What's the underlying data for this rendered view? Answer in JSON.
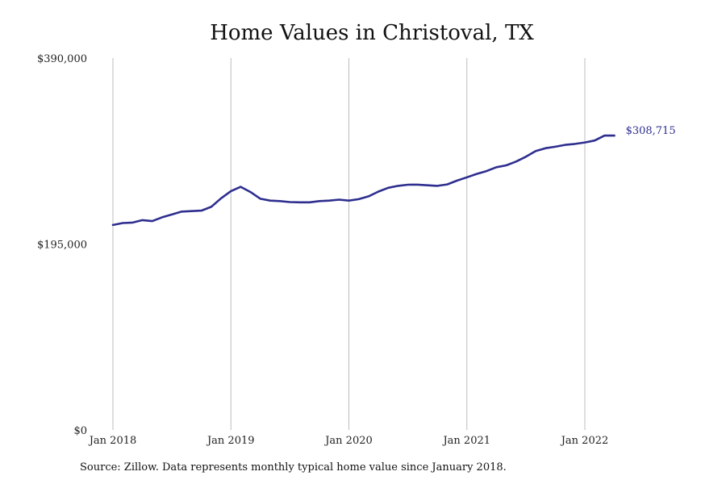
{
  "chart_data": {
    "type": "line",
    "title": "Home Values in Christoval, TX",
    "xlabel": "",
    "ylabel": "",
    "ylim": [
      0,
      390000
    ],
    "xlim": [
      "2017-12",
      "2022-12"
    ],
    "grid": "vertical",
    "y_ticks": [
      {
        "value": 0,
        "label": "$0"
      },
      {
        "value": 195000,
        "label": "$195,000"
      },
      {
        "value": 390000,
        "label": "$390,000"
      }
    ],
    "x_ticks": [
      {
        "value": "2018-01",
        "label": "Jan 2018"
      },
      {
        "value": "2019-01",
        "label": "Jan 2019"
      },
      {
        "value": "2020-01",
        "label": "Jan 2020"
      },
      {
        "value": "2021-01",
        "label": "Jan 2021"
      },
      {
        "value": "2022-01",
        "label": "Jan 2022"
      }
    ],
    "series": [
      {
        "color": "#2e2e8f",
        "x": [
          "2018-01",
          "2018-02",
          "2018-03",
          "2018-04",
          "2018-05",
          "2018-06",
          "2018-07",
          "2018-08",
          "2018-09",
          "2018-10",
          "2018-11",
          "2018-12",
          "2019-01",
          "2019-02",
          "2019-03",
          "2019-04",
          "2019-05",
          "2019-06",
          "2019-07",
          "2019-08",
          "2019-09",
          "2019-10",
          "2019-11",
          "2019-12",
          "2020-01",
          "2020-02",
          "2020-03",
          "2020-04",
          "2020-05",
          "2020-06",
          "2020-07",
          "2020-08",
          "2020-09",
          "2020-10",
          "2020-11",
          "2020-12",
          "2021-01",
          "2021-02",
          "2021-03",
          "2021-04",
          "2021-05",
          "2021-06",
          "2021-07",
          "2021-08",
          "2021-09",
          "2021-10",
          "2021-11",
          "2021-12",
          "2022-01",
          "2022-02",
          "2022-03",
          "2022-04"
        ],
        "values": [
          215000,
          217000,
          217500,
          220000,
          219000,
          223000,
          226000,
          229000,
          229500,
          230000,
          234000,
          243000,
          250500,
          255000,
          249500,
          242500,
          240500,
          240000,
          239000,
          238700,
          238700,
          240000,
          240500,
          241500,
          240500,
          242000,
          245000,
          250000,
          254000,
          256000,
          257200,
          257300,
          256600,
          256000,
          257500,
          261500,
          265000,
          268500,
          271500,
          275500,
          277500,
          281500,
          286500,
          292500,
          295500,
          297000,
          299000,
          300000,
          301500,
          303500,
          308715,
          308715
        ]
      }
    ],
    "end_label": "$308,715",
    "source": "Source: Zillow. Data represents monthly typical home value since January 2018."
  }
}
